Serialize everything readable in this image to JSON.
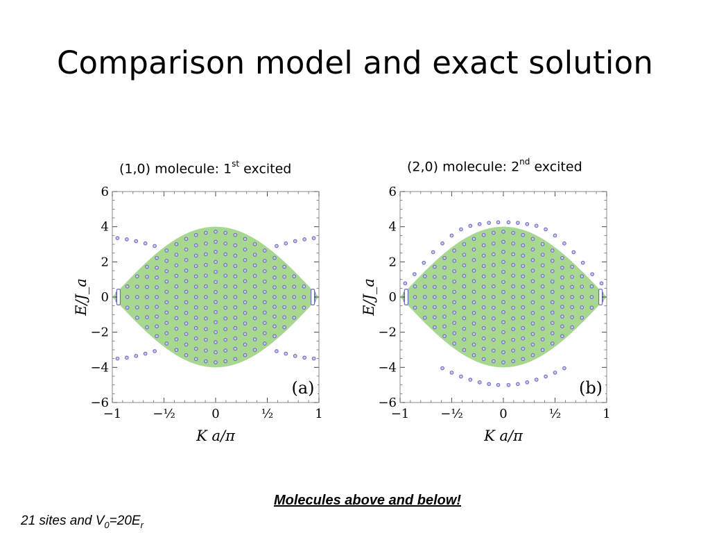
{
  "title": "Comparison model and exact solution",
  "panels": [
    {
      "title_main": "(1,0) molecule: 1",
      "title_sup": "st",
      "title_tail": " excited"
    },
    {
      "title_main": "(2,0) molecule: 2",
      "title_sup": "nd",
      "title_tail": " excited"
    }
  ],
  "notes": {
    "molecules": "Molecules above and below!",
    "sites_pre": "21 sites and V",
    "sites_sub1": "0",
    "sites_mid": "=20E",
    "sites_sub2": "r"
  },
  "colors": {
    "band": "#a8d890",
    "points": "#6b6bbf",
    "frame": "#888888"
  },
  "chart_data": [
    {
      "type": "scatter",
      "panel_label": "(a)",
      "xlabel": "K a/π",
      "ylabel": "E/J_a",
      "xlim": [
        -1,
        1
      ],
      "ylim": [
        -6,
        6
      ],
      "xticks": [
        {
          "v": -1,
          "l": "−1"
        },
        {
          "v": -0.5,
          "l": "−½"
        },
        {
          "v": 0,
          "l": "0"
        },
        {
          "v": 0.5,
          "l": "½"
        },
        {
          "v": 1,
          "l": "1"
        }
      ],
      "yticks": [
        {
          "v": -6,
          "l": "−6"
        },
        {
          "v": -4,
          "l": "−4"
        },
        {
          "v": -2,
          "l": "−2"
        },
        {
          "v": 0,
          "l": "0"
        },
        {
          "v": 2,
          "l": "2"
        },
        {
          "v": 4,
          "l": "4"
        },
        {
          "v": 6,
          "l": "6"
        }
      ],
      "band_halfwidth_at_K0": 4,
      "bound_states_above": [
        [
          -0.95,
          3.35
        ],
        [
          -0.86,
          3.28
        ],
        [
          -0.77,
          3.18
        ],
        [
          -0.68,
          3.05
        ],
        [
          -0.59,
          2.9
        ],
        [
          0.59,
          2.9
        ],
        [
          0.68,
          3.05
        ],
        [
          0.77,
          3.18
        ],
        [
          0.86,
          3.28
        ],
        [
          0.95,
          3.35
        ]
      ],
      "bound_states_below": [
        [
          -0.95,
          -3.5
        ],
        [
          -0.86,
          -3.45
        ],
        [
          -0.77,
          -3.35
        ],
        [
          -0.68,
          -3.22
        ],
        [
          -0.59,
          -3.08
        ],
        [
          0.59,
          -3.08
        ],
        [
          0.68,
          -3.22
        ],
        [
          0.77,
          -3.35
        ],
        [
          0.86,
          -3.45
        ],
        [
          0.95,
          -3.5
        ]
      ]
    },
    {
      "type": "scatter",
      "panel_label": "(b)",
      "xlabel": "K a/π",
      "ylabel": "E/J_a",
      "xlim": [
        -1,
        1
      ],
      "ylim": [
        -6,
        6
      ],
      "xticks": [
        {
          "v": -1,
          "l": "−1"
        },
        {
          "v": -0.5,
          "l": "−½"
        },
        {
          "v": 0,
          "l": "0"
        },
        {
          "v": 0.5,
          "l": "½"
        },
        {
          "v": 1,
          "l": "1"
        }
      ],
      "yticks": [
        {
          "v": -6,
          "l": "−6"
        },
        {
          "v": -4,
          "l": "−4"
        },
        {
          "v": -2,
          "l": "−2"
        },
        {
          "v": 0,
          "l": "0"
        },
        {
          "v": 2,
          "l": "2"
        },
        {
          "v": 4,
          "l": "4"
        },
        {
          "v": 6,
          "l": "6"
        }
      ],
      "band_halfwidth_at_K0": 4,
      "bound_states_above": [
        [
          -0.95,
          0.78
        ],
        [
          -0.86,
          1.3
        ],
        [
          -0.77,
          1.95
        ],
        [
          -0.68,
          2.55
        ],
        [
          -0.59,
          3.05
        ],
        [
          -0.5,
          3.5
        ],
        [
          -0.41,
          3.85
        ],
        [
          -0.32,
          4.05
        ],
        [
          -0.23,
          4.15
        ],
        [
          -0.14,
          4.22
        ],
        [
          -0.05,
          4.25
        ],
        [
          0.05,
          4.25
        ],
        [
          0.14,
          4.22
        ],
        [
          0.23,
          4.15
        ],
        [
          0.32,
          4.05
        ],
        [
          0.41,
          3.85
        ],
        [
          0.5,
          3.5
        ],
        [
          0.59,
          3.05
        ],
        [
          0.68,
          2.55
        ],
        [
          0.77,
          1.95
        ],
        [
          0.86,
          1.3
        ],
        [
          0.95,
          0.78
        ]
      ],
      "bound_states_below": [
        [
          -0.59,
          -4.05
        ],
        [
          -0.5,
          -4.3
        ],
        [
          -0.41,
          -4.52
        ],
        [
          -0.32,
          -4.7
        ],
        [
          -0.23,
          -4.85
        ],
        [
          -0.14,
          -4.95
        ],
        [
          -0.05,
          -5.0
        ],
        [
          0.05,
          -5.0
        ],
        [
          0.14,
          -4.95
        ],
        [
          0.23,
          -4.85
        ],
        [
          0.32,
          -4.7
        ],
        [
          0.41,
          -4.52
        ],
        [
          0.5,
          -4.3
        ],
        [
          0.59,
          -4.05
        ]
      ]
    }
  ]
}
